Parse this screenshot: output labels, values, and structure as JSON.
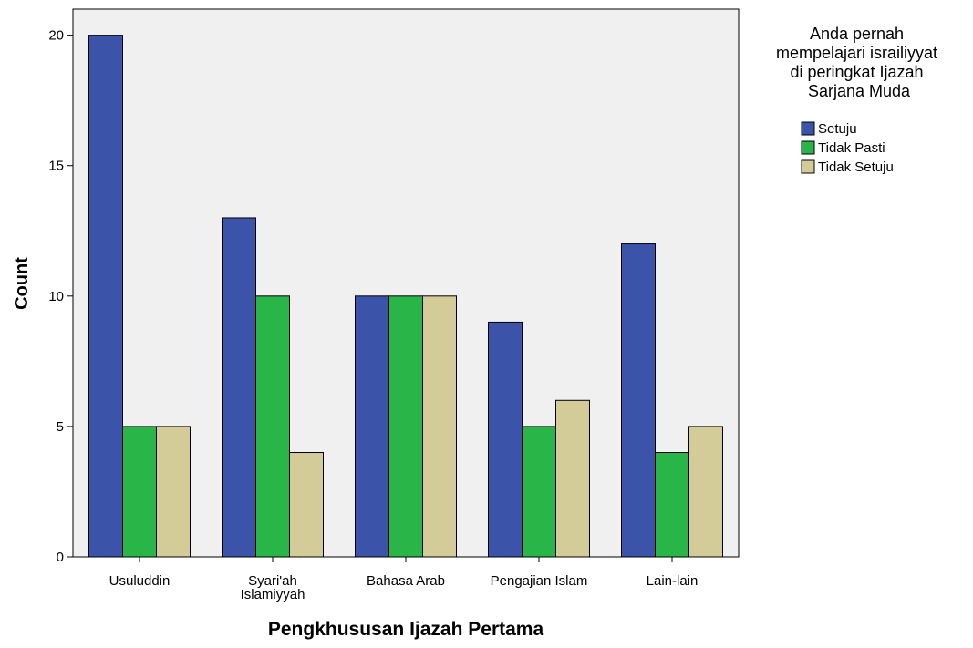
{
  "chart_data": {
    "type": "bar",
    "categories": [
      [
        "Usuluddin"
      ],
      [
        "Syari'ah",
        "Islamiyyah"
      ],
      [
        "Bahasa Arab"
      ],
      [
        "Pengajian Islam"
      ],
      [
        "Lain-lain"
      ]
    ],
    "series": [
      {
        "name": "Setuju",
        "values": [
          20,
          13,
          10,
          9,
          12
        ],
        "color": "#3B53A8"
      },
      {
        "name": "Tidak Pasti",
        "values": [
          5,
          10,
          10,
          5,
          4
        ],
        "color": "#29B548"
      },
      {
        "name": "Tidak Setuju",
        "values": [
          5,
          4,
          10,
          6,
          5
        ],
        "color": "#D4CC98"
      }
    ],
    "xlabel": "Pengkhususan Ijazah Pertama",
    "ylabel": "Count",
    "ylim": [
      0,
      21
    ],
    "yticks": [
      0,
      5,
      10,
      15,
      20
    ],
    "legend": {
      "title_lines": [
        "Anda pernah",
        "mempelajari israiliyyat",
        "di peringkat Ijazah",
        "Sarjana Muda"
      ],
      "placement": "right"
    },
    "plot_background": "#F0F0F0",
    "grid": false
  }
}
